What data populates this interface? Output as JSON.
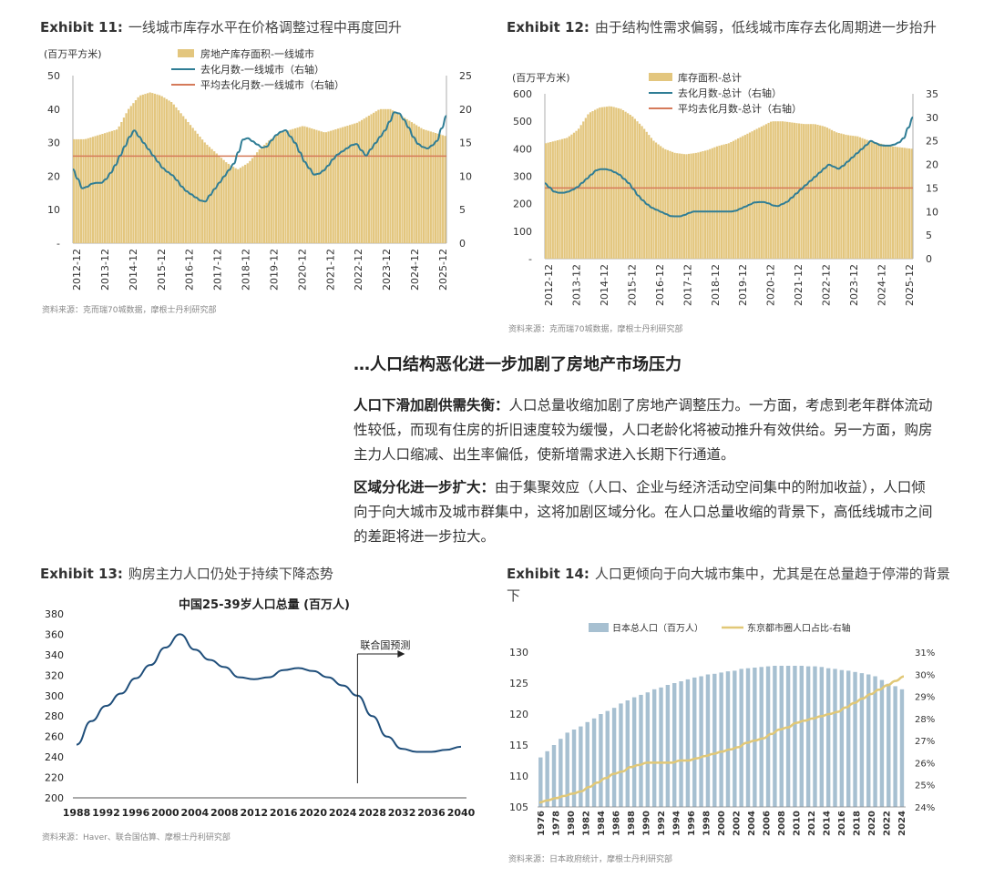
{
  "exhibit11": {
    "label": "Exhibit 11:",
    "title": "一线城市库存水平在价格调整过程中再度回升",
    "unit": "(百万平方米)",
    "legend": [
      "房地产库存面积-一线城市",
      "去化月数-一线城市（右轴）",
      "平均去化月数-一线城市（右轴）"
    ],
    "source": "资料来源：克而瑞70城数据，摩根士丹利研究部",
    "chart_data": {
      "type": "bar+line",
      "years": [
        "2012-12",
        "2013-12",
        "2014-12",
        "2015-12",
        "2016-12",
        "2017-12",
        "2018-12",
        "2019-12",
        "2020-12",
        "2021-12",
        "2022-12",
        "2023-12",
        "2024-12",
        "2025-12"
      ],
      "left_ticks": [
        "50",
        "40",
        "30",
        "20",
        "10",
        "-"
      ],
      "right_ticks": [
        "25",
        "20",
        "15",
        "10",
        "5",
        "0"
      ],
      "ylim_left": [
        0,
        50
      ],
      "ylim_right": [
        0,
        25
      ],
      "inventory_quarterly": [
        31,
        31,
        32,
        33,
        34,
        40,
        44,
        45,
        44,
        42,
        38,
        34,
        30,
        27,
        24,
        22,
        24,
        28,
        31,
        33,
        34,
        35,
        34,
        33,
        34,
        35,
        36,
        38,
        40,
        40,
        38,
        36,
        34,
        33,
        32
      ],
      "months_quarterly": [
        11,
        8,
        9,
        9,
        11,
        14,
        17,
        15,
        13,
        11,
        10,
        8,
        7,
        6,
        8,
        10,
        12,
        16,
        15,
        14,
        16,
        17,
        15,
        12,
        10,
        11,
        13,
        14,
        15,
        13,
        15,
        17,
        20,
        18,
        15,
        14,
        15,
        19
      ],
      "avg_months": 13
    }
  },
  "exhibit12": {
    "label": "Exhibit 12:",
    "title": "由于结构性需求偏弱，低线城市库存去化周期进一步抬升",
    "unit": "(百万平方米)",
    "legend": [
      "库存面积-总计",
      "去化月数-总计（右轴）",
      "平均去化月数-总计（右轴）"
    ],
    "source": "资料来源：克而瑞70城数据，摩根士丹利研究部",
    "chart_data": {
      "type": "bar+line",
      "years": [
        "2012-12",
        "2013-12",
        "2014-12",
        "2015-12",
        "2016-12",
        "2017-12",
        "2018-12",
        "2019-12",
        "2020-12",
        "2021-12",
        "2022-12",
        "2023-12",
        "2024-12",
        "2025-12"
      ],
      "left_ticks": [
        "600",
        "500",
        "400",
        "300",
        "200",
        "100",
        "-"
      ],
      "right_ticks": [
        "35",
        "30",
        "25",
        "20",
        "15",
        "10",
        "5",
        "0"
      ],
      "ylim_left": [
        0,
        600
      ],
      "ylim_right": [
        0,
        35
      ],
      "inventory_quarterly": [
        420,
        430,
        440,
        470,
        530,
        550,
        555,
        545,
        520,
        480,
        430,
        400,
        385,
        380,
        385,
        395,
        410,
        420,
        440,
        460,
        480,
        500,
        500,
        495,
        490,
        490,
        480,
        460,
        450,
        445,
        430,
        420,
        410,
        405,
        400
      ],
      "months_quarterly": [
        16,
        14,
        14,
        15,
        17,
        19,
        19,
        18,
        16,
        13,
        11,
        10,
        9,
        9,
        10,
        10,
        10,
        10,
        10,
        11,
        12,
        12,
        11,
        12,
        14,
        16,
        18,
        20,
        19,
        21,
        23,
        25,
        24,
        24,
        25,
        30
      ],
      "avg_months": 15
    }
  },
  "section": {
    "heading": "…人口结构恶化进一步加剧了房地产市场压力",
    "p1_bold": "人口下滑加剧供需失衡：",
    "p1_text": "人口总量收缩加剧了房地产调整压力。一方面，考虑到老年群体流动性较低，而现有住房的折旧速度较为缓慢，人口老龄化将被动推升有效供给。另一方面，购房主力人口缩减、出生率偏低，使新增需求进入长期下行通道。",
    "p2_bold": "区域分化进一步扩大：",
    "p2_text": "由于集聚效应（人口、企业与经济活动空间集中的附加收益），人口倾向于向大城市及城市群集中，这将加剧区域分化。在人口总量收缩的背景下，高低线城市之间的差距将进一步拉大。"
  },
  "exhibit13": {
    "label": "Exhibit 13:",
    "title": "购房主力人口仍处于持续下降态势",
    "source": "资料来源：Haver、联合国估算、摩根士丹利研究部",
    "chart_data": {
      "type": "line",
      "title": "中国25-39岁人口总量 (百万人)",
      "annotation": "联合国预测",
      "forecast_start": 2026,
      "ylim": [
        200,
        380
      ],
      "y_ticks": [
        "380",
        "360",
        "340",
        "320",
        "300",
        "280",
        "260",
        "240",
        "220",
        "200"
      ],
      "x_ticks": [
        "1988",
        "1992",
        "1996",
        "2000",
        "2004",
        "2008",
        "2012",
        "2016",
        "2020",
        "2024",
        "2028",
        "2032",
        "2036",
        "2040"
      ],
      "x": [
        1988,
        1990,
        1992,
        1994,
        1996,
        1998,
        2000,
        2002,
        2004,
        2006,
        2008,
        2010,
        2012,
        2014,
        2016,
        2018,
        2020,
        2022,
        2024,
        2026,
        2028,
        2030,
        2032,
        2034,
        2036,
        2038,
        2040
      ],
      "values": [
        252,
        275,
        290,
        302,
        317,
        330,
        347,
        360,
        345,
        335,
        328,
        318,
        316,
        318,
        325,
        327,
        324,
        318,
        310,
        300,
        280,
        260,
        248,
        245,
        245,
        247,
        250
      ]
    }
  },
  "exhibit14": {
    "label": "Exhibit 14:",
    "title": "人口更倾向于向大城市集中，尤其是在总量趋于停滞的背景下",
    "legend": [
      "日本总人口（百万人）",
      "东京都市圈人口占比-右轴"
    ],
    "source": "资料来源：日本政府统计，摩根士丹利研究部",
    "chart_data": {
      "type": "bar+line",
      "x_ticks": [
        "1976",
        "1978",
        "1980",
        "1982",
        "1984",
        "1986",
        "1988",
        "1990",
        "1992",
        "1994",
        "1996",
        "1998",
        "2000",
        "2002",
        "2004",
        "2006",
        "2008",
        "2010",
        "2012",
        "2014",
        "2016",
        "2018",
        "2020",
        "2022",
        "2024"
      ],
      "left_ticks": [
        "130",
        "125",
        "120",
        "115",
        "110",
        "105"
      ],
      "right_ticks": [
        "31%",
        "30%",
        "29%",
        "28%",
        "27%",
        "26%",
        "25%",
        "24%"
      ],
      "ylim_left": [
        105,
        130
      ],
      "ylim_right": [
        24,
        31
      ],
      "population": [
        113,
        114,
        115,
        116,
        117,
        117.5,
        118,
        118.7,
        119.3,
        120,
        120.5,
        121,
        121.7,
        122.2,
        122.7,
        123.1,
        123.5,
        124,
        124.3,
        124.7,
        125,
        125.3,
        125.6,
        125.9,
        126.1,
        126.4,
        126.5,
        126.7,
        126.9,
        127,
        127.3,
        127.4,
        127.5,
        127.6,
        127.7,
        127.8,
        127.8,
        127.8,
        127.8,
        127.8,
        127.7,
        127.7,
        127.6,
        127.4,
        127.3,
        127.1,
        127,
        126.8,
        126.6,
        126.4,
        126.1,
        125.5,
        124.9,
        124.5,
        124
      ],
      "tokyo_share": [
        24.2,
        24.3,
        24.4,
        24.5,
        24.6,
        24.7,
        24.9,
        25.1,
        25.3,
        25.5,
        25.6,
        25.8,
        25.9,
        26,
        26,
        26,
        26,
        26.1,
        26.1,
        26.2,
        26.3,
        26.4,
        26.5,
        26.6,
        26.7,
        26.9,
        27,
        27.1,
        27.3,
        27.5,
        27.6,
        27.8,
        27.9,
        28,
        28.1,
        28.2,
        28.3,
        28.5,
        28.7,
        28.9,
        29.1,
        29.3,
        29.5,
        29.7,
        29.9
      ]
    }
  }
}
